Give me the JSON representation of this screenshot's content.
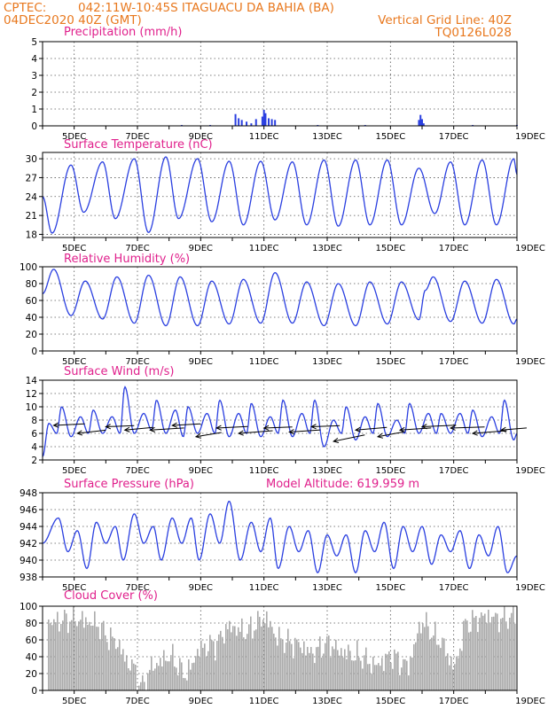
{
  "header": {
    "source": "CPTEC:",
    "location": "042:11W-10:45S   ITAGUACU DA BAHIA (BA)",
    "run": "04DEC2020 40Z (GMT)",
    "grid_note": "Vertical Grid Line: 40Z",
    "code": "TQ0126L028"
  },
  "model_altitude": "Model Altitude: 619.959 m",
  "colors": {
    "header": "#e8781e",
    "title": "#e0208c",
    "line": "#2a3fe0",
    "bar": "#2a3fe0",
    "cloud": "#aaaaaa"
  },
  "x_axis": {
    "start_day": 4,
    "end_day": 19,
    "tick_labels": [
      {
        "day": 5,
        "label": "5DEC"
      },
      {
        "day": 7,
        "label": "7DEC"
      },
      {
        "day": 9,
        "label": "9DEC"
      },
      {
        "day": 11,
        "label": "11DEC"
      },
      {
        "day": 13,
        "label": "13DEC"
      },
      {
        "day": 15,
        "label": "15DEC"
      },
      {
        "day": 17,
        "label": "17DEC"
      },
      {
        "day": 19,
        "label": "19DEC"
      }
    ]
  },
  "chart_data": [
    {
      "id": "precip",
      "type": "bar",
      "title": "Precipitation (mm/h)",
      "ylim": [
        0,
        5
      ],
      "yticks": [
        0,
        1,
        2,
        3,
        4,
        5
      ],
      "x": [
        10.1,
        10.2,
        10.3,
        10.45,
        10.6,
        10.75,
        10.95,
        11.0,
        11.05,
        11.15,
        11.25,
        11.35,
        15.9,
        15.95,
        16.0,
        16.05,
        8.4,
        9.3,
        12.7,
        14.2,
        17.6,
        19.0
      ],
      "values": [
        0.7,
        0.45,
        0.35,
        0.25,
        0.15,
        0.4,
        0.55,
        0.95,
        0.75,
        0.45,
        0.4,
        0.35,
        0.35,
        0.65,
        0.4,
        0.15,
        0.05,
        0.05,
        0.05,
        0.05,
        0.05,
        0.05
      ]
    },
    {
      "id": "temp",
      "type": "line",
      "title": "Surface Temperature (nC)",
      "ylim": [
        17.5,
        31
      ],
      "yticks": [
        18,
        21,
        24,
        27,
        30
      ],
      "peaks": [
        {
          "x": 4.0,
          "y": 24
        },
        {
          "x": 4.3,
          "y": 18.2
        },
        {
          "x": 4.9,
          "y": 29.0
        },
        {
          "x": 5.3,
          "y": 21.5
        },
        {
          "x": 5.9,
          "y": 29.5
        },
        {
          "x": 6.3,
          "y": 20.5
        },
        {
          "x": 6.9,
          "y": 30.0
        },
        {
          "x": 7.35,
          "y": 18.3
        },
        {
          "x": 7.9,
          "y": 30.3
        },
        {
          "x": 8.3,
          "y": 20.5
        },
        {
          "x": 8.9,
          "y": 30.0
        },
        {
          "x": 9.35,
          "y": 20.0
        },
        {
          "x": 9.9,
          "y": 29.6
        },
        {
          "x": 10.35,
          "y": 19.5
        },
        {
          "x": 10.9,
          "y": 29.6
        },
        {
          "x": 11.35,
          "y": 20.3
        },
        {
          "x": 11.9,
          "y": 29.5
        },
        {
          "x": 12.35,
          "y": 19.5
        },
        {
          "x": 12.9,
          "y": 29.8
        },
        {
          "x": 13.35,
          "y": 19.3
        },
        {
          "x": 13.9,
          "y": 29.8
        },
        {
          "x": 14.35,
          "y": 19.5
        },
        {
          "x": 14.9,
          "y": 29.8
        },
        {
          "x": 15.35,
          "y": 19.5
        },
        {
          "x": 15.9,
          "y": 28.5
        },
        {
          "x": 16.4,
          "y": 21.3
        },
        {
          "x": 16.9,
          "y": 29.5
        },
        {
          "x": 17.35,
          "y": 19.5
        },
        {
          "x": 17.9,
          "y": 29.8
        },
        {
          "x": 18.35,
          "y": 19.5
        },
        {
          "x": 18.9,
          "y": 30.0
        },
        {
          "x": 19.0,
          "y": 27.5
        }
      ]
    },
    {
      "id": "rh",
      "type": "line",
      "title": "Relative Humidity (%)",
      "ylim": [
        0,
        100
      ],
      "yticks": [
        0,
        20,
        40,
        60,
        80,
        100
      ],
      "peaks": [
        {
          "x": 4.0,
          "y": 68
        },
        {
          "x": 4.35,
          "y": 97
        },
        {
          "x": 4.9,
          "y": 42
        },
        {
          "x": 5.35,
          "y": 83
        },
        {
          "x": 5.9,
          "y": 38
        },
        {
          "x": 6.35,
          "y": 88
        },
        {
          "x": 6.9,
          "y": 33
        },
        {
          "x": 7.35,
          "y": 90
        },
        {
          "x": 7.9,
          "y": 30
        },
        {
          "x": 8.35,
          "y": 88
        },
        {
          "x": 8.9,
          "y": 30
        },
        {
          "x": 9.35,
          "y": 83
        },
        {
          "x": 9.9,
          "y": 32
        },
        {
          "x": 10.35,
          "y": 85
        },
        {
          "x": 10.9,
          "y": 33
        },
        {
          "x": 11.35,
          "y": 93
        },
        {
          "x": 11.9,
          "y": 33
        },
        {
          "x": 12.35,
          "y": 82
        },
        {
          "x": 12.9,
          "y": 30
        },
        {
          "x": 13.35,
          "y": 80
        },
        {
          "x": 13.9,
          "y": 30
        },
        {
          "x": 14.35,
          "y": 82
        },
        {
          "x": 14.9,
          "y": 32
        },
        {
          "x": 15.35,
          "y": 82
        },
        {
          "x": 15.9,
          "y": 37
        },
        {
          "x": 16.1,
          "y": 72
        },
        {
          "x": 16.35,
          "y": 88
        },
        {
          "x": 16.9,
          "y": 35
        },
        {
          "x": 17.35,
          "y": 83
        },
        {
          "x": 17.9,
          "y": 33
        },
        {
          "x": 18.35,
          "y": 85
        },
        {
          "x": 18.9,
          "y": 32
        },
        {
          "x": 19.0,
          "y": 38
        }
      ]
    },
    {
      "id": "wind",
      "type": "line",
      "title": "Surface Wind (m/s)",
      "ylim": [
        2,
        14
      ],
      "yticks": [
        2,
        4,
        6,
        8,
        10,
        12,
        14
      ],
      "peaks": [
        {
          "x": 4.0,
          "y": 2.5
        },
        {
          "x": 4.2,
          "y": 7.5
        },
        {
          "x": 4.45,
          "y": 6
        },
        {
          "x": 4.6,
          "y": 10
        },
        {
          "x": 4.9,
          "y": 5.5
        },
        {
          "x": 5.2,
          "y": 8.5
        },
        {
          "x": 5.45,
          "y": 6
        },
        {
          "x": 5.6,
          "y": 9.5
        },
        {
          "x": 5.9,
          "y": 6
        },
        {
          "x": 6.2,
          "y": 8.5
        },
        {
          "x": 6.45,
          "y": 6
        },
        {
          "x": 6.6,
          "y": 13
        },
        {
          "x": 6.9,
          "y": 6
        },
        {
          "x": 7.2,
          "y": 9
        },
        {
          "x": 7.45,
          "y": 6.5
        },
        {
          "x": 7.6,
          "y": 11
        },
        {
          "x": 7.9,
          "y": 6
        },
        {
          "x": 8.2,
          "y": 9.5
        },
        {
          "x": 8.45,
          "y": 5.5
        },
        {
          "x": 8.6,
          "y": 10
        },
        {
          "x": 8.9,
          "y": 6
        },
        {
          "x": 9.2,
          "y": 9
        },
        {
          "x": 9.45,
          "y": 6
        },
        {
          "x": 9.6,
          "y": 11
        },
        {
          "x": 9.9,
          "y": 5.5
        },
        {
          "x": 10.2,
          "y": 9
        },
        {
          "x": 10.45,
          "y": 6
        },
        {
          "x": 10.6,
          "y": 10.5
        },
        {
          "x": 10.9,
          "y": 5.5
        },
        {
          "x": 11.2,
          "y": 8.5
        },
        {
          "x": 11.45,
          "y": 6
        },
        {
          "x": 11.6,
          "y": 11
        },
        {
          "x": 11.9,
          "y": 5.5
        },
        {
          "x": 12.2,
          "y": 9
        },
        {
          "x": 12.45,
          "y": 6
        },
        {
          "x": 12.6,
          "y": 11
        },
        {
          "x": 12.9,
          "y": 4
        },
        {
          "x": 13.2,
          "y": 8
        },
        {
          "x": 13.45,
          "y": 6
        },
        {
          "x": 13.6,
          "y": 10
        },
        {
          "x": 13.9,
          "y": 5
        },
        {
          "x": 14.2,
          "y": 8.5
        },
        {
          "x": 14.45,
          "y": 6
        },
        {
          "x": 14.6,
          "y": 10.5
        },
        {
          "x": 14.9,
          "y": 5.5
        },
        {
          "x": 15.2,
          "y": 8
        },
        {
          "x": 15.45,
          "y": 6
        },
        {
          "x": 15.6,
          "y": 10.5
        },
        {
          "x": 15.9,
          "y": 6
        },
        {
          "x": 16.2,
          "y": 9
        },
        {
          "x": 16.45,
          "y": 6
        },
        {
          "x": 16.6,
          "y": 9
        },
        {
          "x": 16.9,
          "y": 6
        },
        {
          "x": 17.2,
          "y": 9
        },
        {
          "x": 17.45,
          "y": 6
        },
        {
          "x": 17.6,
          "y": 9.5
        },
        {
          "x": 17.9,
          "y": 5.5
        },
        {
          "x": 18.2,
          "y": 8.5
        },
        {
          "x": 18.45,
          "y": 6
        },
        {
          "x": 18.6,
          "y": 11
        },
        {
          "x": 18.9,
          "y": 5
        },
        {
          "x": 19.0,
          "y": 6
        }
      ],
      "vectors": [
        {
          "x": 4.35,
          "y": 7.2,
          "dx": 1.1,
          "dy": 0.3
        },
        {
          "x": 5.1,
          "y": 6.0,
          "dx": 1.0,
          "dy": 0.6
        },
        {
          "x": 6.0,
          "y": 7.0,
          "dx": 1.0,
          "dy": 0.2
        },
        {
          "x": 6.6,
          "y": 6.5,
          "dx": 1.0,
          "dy": 0.5
        },
        {
          "x": 7.4,
          "y": 6.5,
          "dx": 1.2,
          "dy": 0.4
        },
        {
          "x": 8.1,
          "y": 7.2,
          "dx": 1.0,
          "dy": 0.3
        },
        {
          "x": 8.85,
          "y": 5.5,
          "dx": 0.9,
          "dy": 0.8
        },
        {
          "x": 9.5,
          "y": 6.8,
          "dx": 1.1,
          "dy": 0.3
        },
        {
          "x": 10.2,
          "y": 6.0,
          "dx": 1.2,
          "dy": 0.5
        },
        {
          "x": 11.0,
          "y": 6.8,
          "dx": 1.0,
          "dy": 0.2
        },
        {
          "x": 11.8,
          "y": 6.2,
          "dx": 1.1,
          "dy": 0.4
        },
        {
          "x": 12.5,
          "y": 7.0,
          "dx": 1.0,
          "dy": 0.2
        },
        {
          "x": 13.2,
          "y": 4.8,
          "dx": 1.1,
          "dy": 1.2
        },
        {
          "x": 13.9,
          "y": 6.5,
          "dx": 1.1,
          "dy": 0.5
        },
        {
          "x": 14.6,
          "y": 5.5,
          "dx": 0.9,
          "dy": 0.9
        },
        {
          "x": 15.3,
          "y": 6.5,
          "dx": 1.1,
          "dy": 0.4
        },
        {
          "x": 16.0,
          "y": 7.0,
          "dx": 1.2,
          "dy": 0.3
        },
        {
          "x": 16.9,
          "y": 6.8,
          "dx": 1.2,
          "dy": 0.2
        },
        {
          "x": 17.6,
          "y": 6.0,
          "dx": 1.2,
          "dy": 0.5
        },
        {
          "x": 18.5,
          "y": 6.5,
          "dx": 0.9,
          "dy": 0.4
        }
      ]
    },
    {
      "id": "pressure",
      "type": "line",
      "title": "Surface Pressure (hPa)",
      "ylim": [
        938,
        948
      ],
      "yticks": [
        938,
        940,
        942,
        944,
        946,
        948
      ],
      "peaks": [
        {
          "x": 4.0,
          "y": 942
        },
        {
          "x": 4.5,
          "y": 945
        },
        {
          "x": 4.8,
          "y": 941
        },
        {
          "x": 5.1,
          "y": 943.5
        },
        {
          "x": 5.4,
          "y": 939
        },
        {
          "x": 5.7,
          "y": 944.5
        },
        {
          "x": 6.0,
          "y": 942
        },
        {
          "x": 6.3,
          "y": 944
        },
        {
          "x": 6.55,
          "y": 940
        },
        {
          "x": 6.9,
          "y": 945.5
        },
        {
          "x": 7.2,
          "y": 942
        },
        {
          "x": 7.5,
          "y": 944
        },
        {
          "x": 7.75,
          "y": 940
        },
        {
          "x": 8.1,
          "y": 945
        },
        {
          "x": 8.4,
          "y": 942
        },
        {
          "x": 8.7,
          "y": 945
        },
        {
          "x": 8.95,
          "y": 940
        },
        {
          "x": 9.3,
          "y": 945.5
        },
        {
          "x": 9.6,
          "y": 942
        },
        {
          "x": 9.9,
          "y": 947
        },
        {
          "x": 10.25,
          "y": 940
        },
        {
          "x": 10.6,
          "y": 944.5
        },
        {
          "x": 10.9,
          "y": 941
        },
        {
          "x": 11.2,
          "y": 945
        },
        {
          "x": 11.45,
          "y": 939
        },
        {
          "x": 11.8,
          "y": 944
        },
        {
          "x": 12.1,
          "y": 941
        },
        {
          "x": 12.4,
          "y": 943.5
        },
        {
          "x": 12.7,
          "y": 938.5
        },
        {
          "x": 13.0,
          "y": 943
        },
        {
          "x": 13.3,
          "y": 940.5
        },
        {
          "x": 13.6,
          "y": 943
        },
        {
          "x": 13.9,
          "y": 938.5
        },
        {
          "x": 14.2,
          "y": 943.5
        },
        {
          "x": 14.5,
          "y": 941
        },
        {
          "x": 14.8,
          "y": 944.5
        },
        {
          "x": 15.1,
          "y": 939
        },
        {
          "x": 15.4,
          "y": 944
        },
        {
          "x": 15.7,
          "y": 941
        },
        {
          "x": 16.0,
          "y": 944
        },
        {
          "x": 16.3,
          "y": 939.5
        },
        {
          "x": 16.6,
          "y": 943
        },
        {
          "x": 16.9,
          "y": 941
        },
        {
          "x": 17.2,
          "y": 943.5
        },
        {
          "x": 17.5,
          "y": 939
        },
        {
          "x": 17.8,
          "y": 943
        },
        {
          "x": 18.1,
          "y": 940.5
        },
        {
          "x": 18.4,
          "y": 944
        },
        {
          "x": 18.7,
          "y": 938.5
        },
        {
          "x": 19.0,
          "y": 940.5
        }
      ]
    },
    {
      "id": "cloud",
      "type": "bar",
      "title": "Cloud Cover (%)",
      "ylim": [
        0,
        100
      ],
      "yticks": [
        0,
        20,
        40,
        60,
        80,
        100
      ],
      "profile": [
        {
          "x": 4.0,
          "y": 80
        },
        {
          "x": 5.0,
          "y": 85
        },
        {
          "x": 5.6,
          "y": 80
        },
        {
          "x": 6.2,
          "y": 60
        },
        {
          "x": 6.8,
          "y": 30
        },
        {
          "x": 7.1,
          "y": 5
        },
        {
          "x": 7.5,
          "y": 30
        },
        {
          "x": 8.0,
          "y": 40
        },
        {
          "x": 8.5,
          "y": 20
        },
        {
          "x": 9.0,
          "y": 50
        },
        {
          "x": 9.4,
          "y": 55
        },
        {
          "x": 9.9,
          "y": 75
        },
        {
          "x": 10.4,
          "y": 70
        },
        {
          "x": 11.0,
          "y": 85
        },
        {
          "x": 11.5,
          "y": 60
        },
        {
          "x": 12.0,
          "y": 55
        },
        {
          "x": 12.5,
          "y": 45
        },
        {
          "x": 13.0,
          "y": 55
        },
        {
          "x": 13.5,
          "y": 45
        },
        {
          "x": 14.0,
          "y": 40
        },
        {
          "x": 14.5,
          "y": 30
        },
        {
          "x": 15.0,
          "y": 40
        },
        {
          "x": 15.5,
          "y": 30
        },
        {
          "x": 16.0,
          "y": 80
        },
        {
          "x": 16.5,
          "y": 60
        },
        {
          "x": 17.0,
          "y": 30
        },
        {
          "x": 17.4,
          "y": 80
        },
        {
          "x": 18.0,
          "y": 88
        },
        {
          "x": 18.5,
          "y": 85
        },
        {
          "x": 19.0,
          "y": 90
        }
      ]
    }
  ]
}
